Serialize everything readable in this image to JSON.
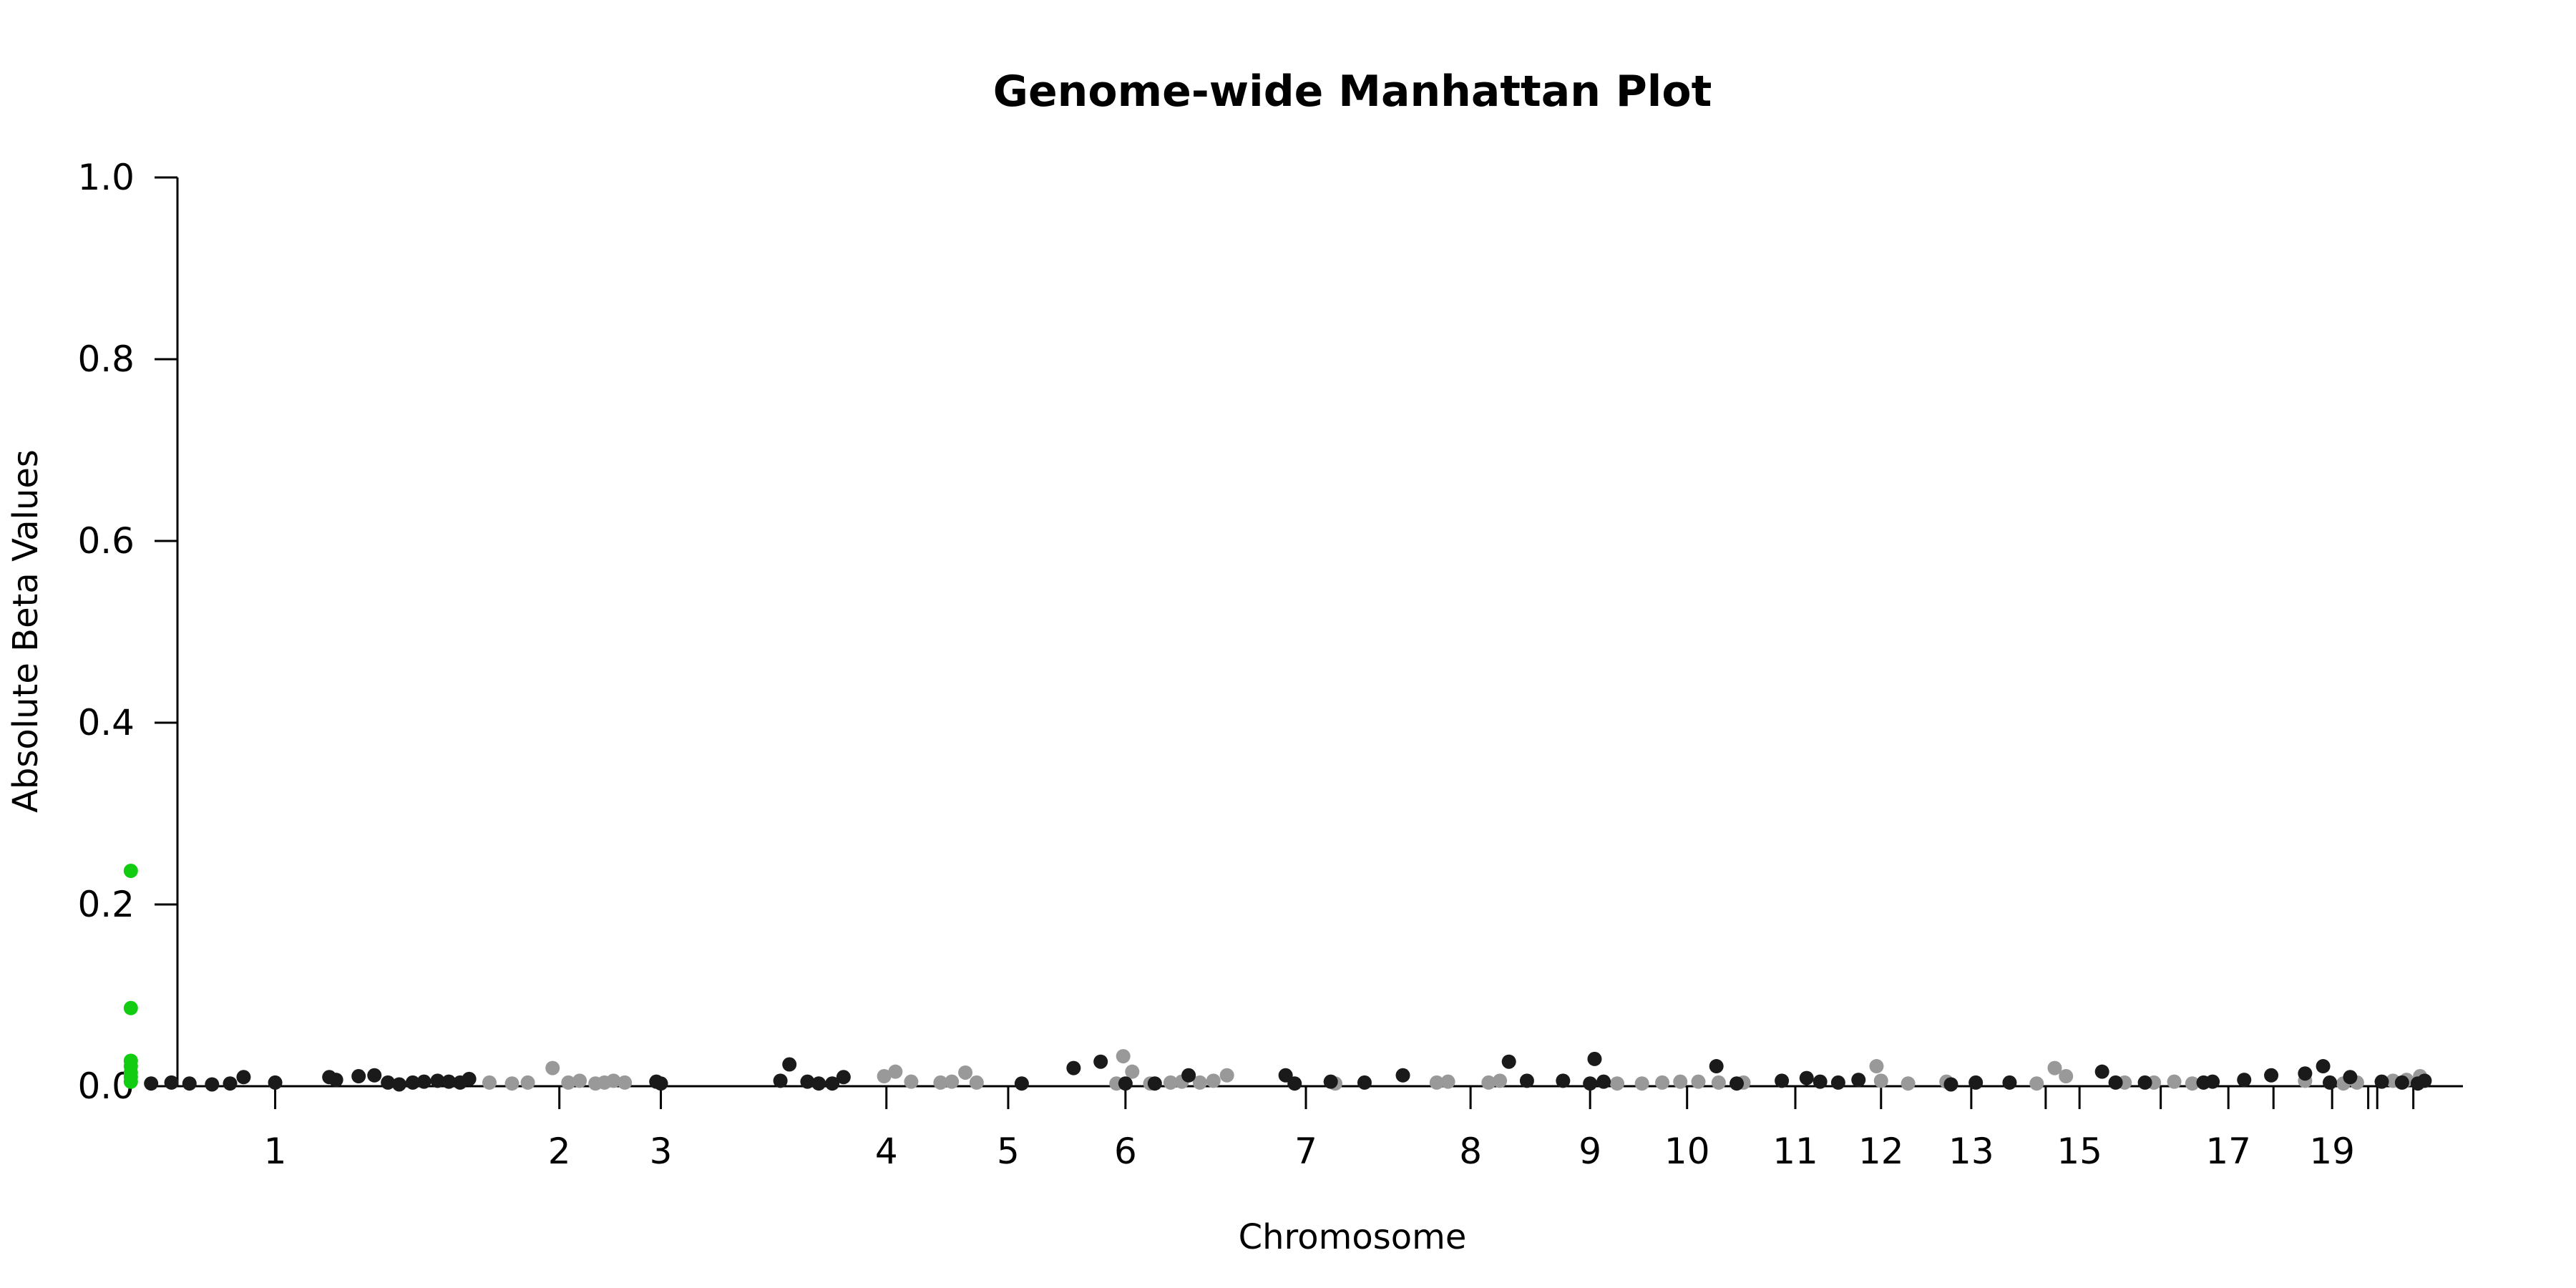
{
  "chart_data": {
    "type": "scatter",
    "title": "Genome-wide Manhattan Plot",
    "xlabel": "Chromosome",
    "ylabel": "Absolute Beta Values",
    "ylim": [
      0,
      1
    ],
    "yticks": [
      "0.0",
      "0.2",
      "0.4",
      "0.6",
      "0.8",
      "1.0"
    ],
    "yticks_values": [
      0,
      0.2,
      0.4,
      0.6,
      0.8,
      1.0
    ],
    "xlim": [
      0,
      100
    ],
    "chromosome_ticks": [
      {
        "label": "1",
        "pos": 3.0
      },
      {
        "label": "2",
        "pos": 15.6
      },
      {
        "label": "3",
        "pos": 20.1
      },
      {
        "label": "4",
        "pos": 30.1
      },
      {
        "label": "5",
        "pos": 35.5
      },
      {
        "label": "6",
        "pos": 40.7
      },
      {
        "label": "7",
        "pos": 48.7
      },
      {
        "label": "8",
        "pos": 56.0
      },
      {
        "label": "9",
        "pos": 61.3
      },
      {
        "label": "10",
        "pos": 65.6
      },
      {
        "label": "11",
        "pos": 70.4
      },
      {
        "label": "12",
        "pos": 74.2
      },
      {
        "label": "13",
        "pos": 78.2
      },
      {
        "label": "",
        "pos": 81.5
      },
      {
        "label": "15",
        "pos": 83.0
      },
      {
        "label": "",
        "pos": 86.6
      },
      {
        "label": "17",
        "pos": 89.6
      },
      {
        "label": "",
        "pos": 91.6
      },
      {
        "label": "19",
        "pos": 94.2
      },
      {
        "label": "",
        "pos": 95.8
      },
      {
        "label": "",
        "pos": 96.2
      },
      {
        "label": "",
        "pos": 97.8
      }
    ],
    "colors": {
      "dark": "#1a1a1a",
      "light": "#999999",
      "highlight": "#11cc11"
    },
    "series": [
      {
        "color": "highlight",
        "x": [
          -3.4,
          -3.4,
          -3.4,
          -3.4,
          -3.4,
          -3.4,
          -3.4
        ],
        "y": [
          0.237,
          0.086,
          0.028,
          0.022,
          0.015,
          0.01,
          0.005
        ]
      },
      {
        "color": "dark",
        "x": [
          -2.5,
          -1.6,
          -0.8,
          0.2,
          1.0,
          1.6,
          3.0,
          5.4,
          5.7,
          6.7,
          7.4,
          8.0,
          8.5,
          9.1,
          9.6,
          10.2,
          10.7,
          11.2,
          11.6,
          19.9,
          20.1,
          25.4,
          25.8,
          26.6,
          27.1,
          27.7,
          28.2,
          36.1,
          38.4,
          39.6,
          40.7,
          42.0,
          43.5,
          47.8,
          48.2,
          49.8,
          51.3,
          53.0,
          57.7,
          58.5,
          60.1,
          61.3,
          61.5,
          61.9,
          66.9,
          67.8,
          69.8,
          70.9,
          71.5,
          72.3,
          73.2,
          77.3,
          78.4,
          79.9,
          84.0,
          84.6,
          85.9,
          88.5,
          88.9,
          90.3,
          91.5,
          93.0,
          93.8,
          94.1,
          95.0,
          96.4,
          97.3,
          98.0,
          98.3
        ],
        "y": [
          0.003,
          0.004,
          0.003,
          0.002,
          0.003,
          0.01,
          0.004,
          0.01,
          0.007,
          0.011,
          0.012,
          0.004,
          0.002,
          0.004,
          0.005,
          0.006,
          0.005,
          0.004,
          0.008,
          0.005,
          0.003,
          0.006,
          0.024,
          0.005,
          0.003,
          0.003,
          0.01,
          0.003,
          0.02,
          0.027,
          0.003,
          0.003,
          0.012,
          0.012,
          0.003,
          0.005,
          0.004,
          0.012,
          0.027,
          0.006,
          0.006,
          0.003,
          0.03,
          0.005,
          0.022,
          0.003,
          0.006,
          0.009,
          0.005,
          0.004,
          0.007,
          0.002,
          0.004,
          0.004,
          0.016,
          0.004,
          0.004,
          0.004,
          0.005,
          0.007,
          0.012,
          0.014,
          0.022,
          0.004,
          0.01,
          0.005,
          0.004,
          0.003,
          0.006
        ]
      },
      {
        "color": "light",
        "x": [
          12.5,
          13.5,
          14.2,
          15.3,
          16.0,
          16.5,
          17.2,
          17.6,
          18.0,
          18.5,
          30.0,
          30.5,
          31.2,
          32.5,
          33.0,
          33.6,
          34.1,
          40.3,
          40.6,
          41.0,
          41.8,
          42.7,
          43.2,
          44.0,
          44.6,
          45.2,
          50.0,
          54.5,
          55.0,
          56.8,
          57.3,
          62.5,
          63.6,
          64.5,
          65.3,
          66.1,
          67.0,
          68.1,
          74.0,
          74.2,
          75.4,
          77.1,
          81.1,
          81.9,
          82.4,
          85.0,
          86.3,
          87.2,
          88.0,
          93.0,
          94.7,
          95.3,
          96.9,
          97.5,
          98.1
        ],
        "y": [
          0.004,
          0.003,
          0.004,
          0.02,
          0.004,
          0.006,
          0.003,
          0.004,
          0.006,
          0.004,
          0.011,
          0.016,
          0.005,
          0.004,
          0.005,
          0.015,
          0.004,
          0.003,
          0.033,
          0.016,
          0.003,
          0.004,
          0.005,
          0.004,
          0.006,
          0.012,
          0.003,
          0.004,
          0.005,
          0.004,
          0.006,
          0.003,
          0.003,
          0.004,
          0.005,
          0.005,
          0.004,
          0.004,
          0.022,
          0.006,
          0.003,
          0.005,
          0.003,
          0.02,
          0.011,
          0.004,
          0.004,
          0.005,
          0.003,
          0.006,
          0.003,
          0.004,
          0.006,
          0.007,
          0.011
        ]
      }
    ]
  }
}
